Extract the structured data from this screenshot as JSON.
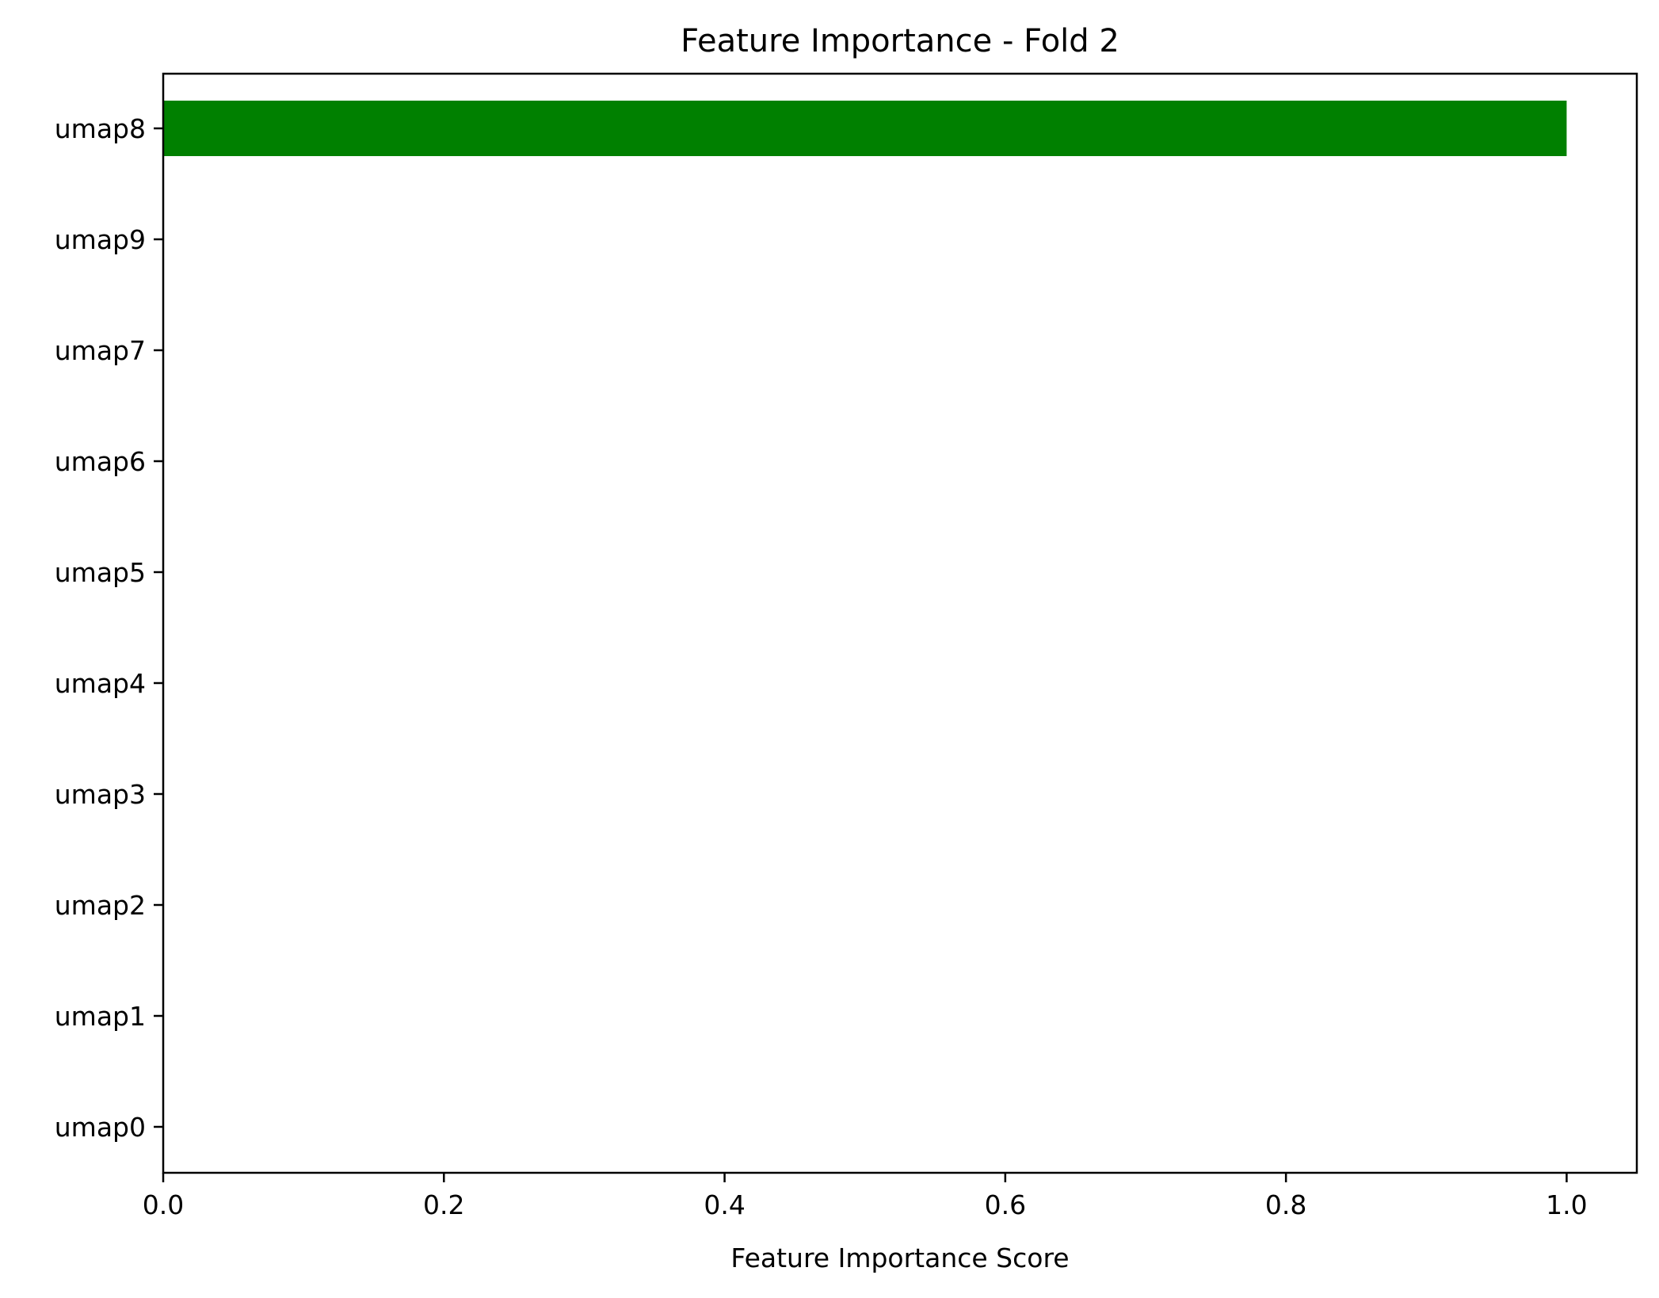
{
  "chart_data": {
    "type": "bar",
    "orientation": "horizontal",
    "title": "Feature Importance - Fold 2",
    "xlabel": "Feature Importance Score",
    "ylabel": "",
    "categories": [
      "umap8",
      "umap9",
      "umap7",
      "umap6",
      "umap5",
      "umap4",
      "umap3",
      "umap2",
      "umap1",
      "umap0"
    ],
    "values": [
      1.0,
      0.0,
      0.0,
      0.0,
      0.0,
      0.0,
      0.0,
      0.0,
      0.0,
      0.0
    ],
    "xlim": [
      0,
      1.05
    ],
    "xticks": [
      "0.0",
      "0.2",
      "0.4",
      "0.6",
      "0.8",
      "1.0"
    ],
    "bar_color": "#008000",
    "grid": false,
    "legend": false
  }
}
